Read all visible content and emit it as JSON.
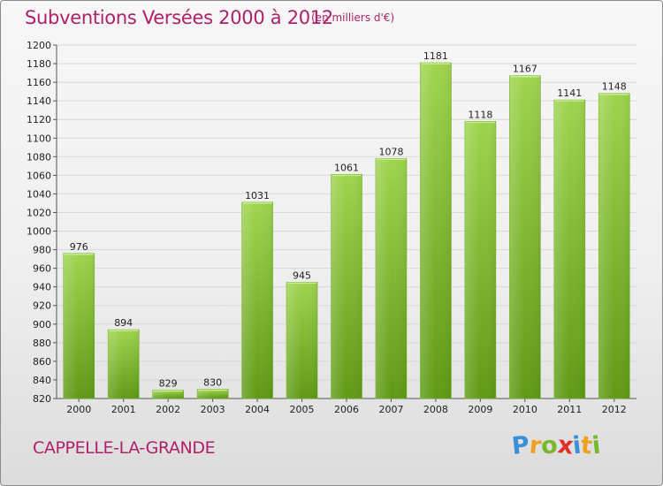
{
  "chart_data": {
    "type": "bar",
    "title": "Subventions Versées 2000 à 2012",
    "subtitle": "(en milliers d'€)",
    "categories": [
      "2000",
      "2001",
      "2002",
      "2003",
      "2004",
      "2005",
      "2006",
      "2007",
      "2008",
      "2009",
      "2010",
      "2011",
      "2012"
    ],
    "values": [
      976,
      894,
      829,
      830,
      1031,
      945,
      1061,
      1078,
      1181,
      1118,
      1167,
      1141,
      1148
    ],
    "ylim": [
      820,
      1200
    ],
    "yticks": [
      820,
      840,
      860,
      880,
      900,
      920,
      940,
      960,
      980,
      1000,
      1020,
      1040,
      1060,
      1080,
      1100,
      1120,
      1140,
      1160,
      1180,
      1200
    ],
    "grid": true,
    "colors": {
      "bar_top": "#9fd44e",
      "bar_bottom": "#5f9a16",
      "title": "#b0206a"
    }
  },
  "footer": {
    "commune": "CAPPELLE-LA-GRANDE",
    "logo_letters": [
      {
        "ch": "P",
        "color": "#3a8fd6"
      },
      {
        "ch": "r",
        "color": "#f0a020"
      },
      {
        "ch": "o",
        "color": "#78b82a"
      },
      {
        "ch": "x",
        "color": "#e0302a"
      },
      {
        "ch": "i",
        "color": "#3a8fd6"
      },
      {
        "ch": "t",
        "color": "#f0a020"
      },
      {
        "ch": "i",
        "color": "#78b82a"
      }
    ]
  }
}
